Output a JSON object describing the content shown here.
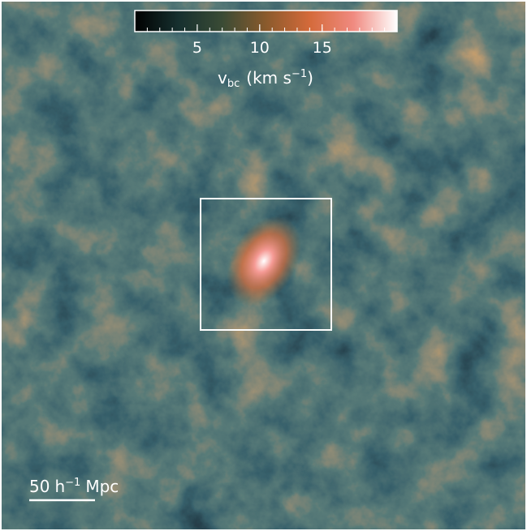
{
  "chart_data": {
    "type": "colormap-image",
    "colorbar": {
      "clim": [
        0,
        21
      ],
      "ticks": [
        5,
        10,
        15
      ],
      "minor_step": 1,
      "label": {
        "symbol": "v",
        "subscript": "bc",
        "unit": "(km s",
        "unit_exponent": "−1",
        "unit_close": ")"
      },
      "colormap": [
        "#000000",
        "#16302f",
        "#3a4b35",
        "#8a5a2c",
        "#d46a3a",
        "#f08a80",
        "#ffffff"
      ]
    },
    "scale_bar": {
      "number": "50",
      "symbol": "h",
      "exponent": "−1",
      "unit": "Mpc"
    }
  }
}
